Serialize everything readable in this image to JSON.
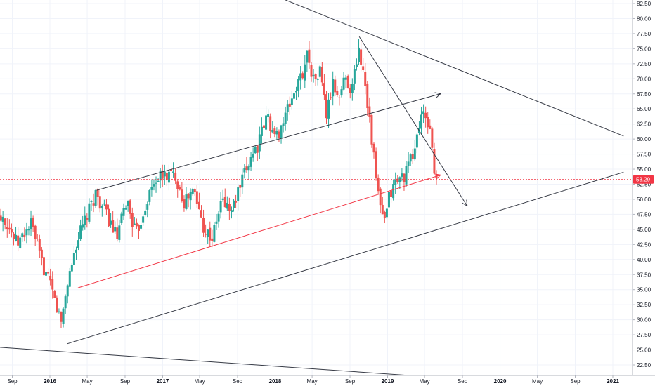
{
  "chart_data": {
    "type": "candlestick",
    "title": "",
    "xlabel": "",
    "ylabel": "",
    "ylim": [
      20.8,
      83.6
    ],
    "grid": true,
    "colors": {
      "up": "#26a69a",
      "down": "#ef5350",
      "trendline": "#363a45",
      "support": "#f23645",
      "price_line": "#f23645",
      "grid": "#f0f3fa",
      "axis_text": "#131722"
    },
    "x_tick_labels": [
      {
        "label": "Sep",
        "date": "2015-09-01"
      },
      {
        "label": "2016",
        "date": "2016-01-01"
      },
      {
        "label": "May",
        "date": "2016-05-01"
      },
      {
        "label": "Sep",
        "date": "2016-09-01"
      },
      {
        "label": "2017",
        "date": "2017-01-01"
      },
      {
        "label": "May",
        "date": "2017-05-01"
      },
      {
        "label": "Sep",
        "date": "2017-09-01"
      },
      {
        "label": "2018",
        "date": "2018-01-01"
      },
      {
        "label": "May",
        "date": "2018-05-01"
      },
      {
        "label": "Sep",
        "date": "2018-09-01"
      },
      {
        "label": "2019",
        "date": "2019-01-01"
      },
      {
        "label": "May",
        "date": "2019-05-01"
      },
      {
        "label": "Sep",
        "date": "2019-09-01"
      },
      {
        "label": "2020",
        "date": "2020-01-01"
      },
      {
        "label": "May",
        "date": "2020-05-01"
      },
      {
        "label": "Sep",
        "date": "2020-09-01"
      },
      {
        "label": "2021",
        "date": "2021-01-01"
      }
    ],
    "y_tick_labels": [
      "82.50",
      "80.00",
      "77.50",
      "75.00",
      "72.50",
      "70.00",
      "67.50",
      "65.00",
      "62.50",
      "60.00",
      "57.50",
      "55.00",
      "52.50",
      "50.00",
      "47.50",
      "45.00",
      "42.50",
      "40.00",
      "37.50",
      "35.00",
      "32.50",
      "30.00",
      "27.50",
      "25.00",
      "22.50"
    ],
    "last_price": {
      "value": 53.29,
      "label": "53.29"
    },
    "path_points": [
      [
        "2015-07-01",
        47
      ],
      [
        "2015-08-05",
        47.5
      ],
      [
        "2015-09-20",
        42.5
      ],
      [
        "2015-11-05",
        46
      ],
      [
        "2015-12-05",
        40
      ],
      [
        "2016-01-10",
        35
      ],
      [
        "2016-02-10",
        29.5
      ],
      [
        "2016-03-01",
        36
      ],
      [
        "2016-04-01",
        43
      ],
      [
        "2016-05-10",
        48
      ],
      [
        "2016-06-01",
        51
      ],
      [
        "2016-07-10",
        47
      ],
      [
        "2016-08-10",
        43.5
      ],
      [
        "2016-09-10",
        50
      ],
      [
        "2016-10-10",
        44
      ],
      [
        "2016-11-15",
        50
      ],
      [
        "2016-12-15",
        53.5
      ],
      [
        "2017-01-15",
        54
      ],
      [
        "2017-02-15",
        54
      ],
      [
        "2017-03-15",
        49.5
      ],
      [
        "2017-04-15",
        51.5
      ],
      [
        "2017-05-20",
        45
      ],
      [
        "2017-06-15",
        43.5
      ],
      [
        "2017-07-15",
        50
      ],
      [
        "2017-08-15",
        48
      ],
      [
        "2017-09-20",
        53
      ],
      [
        "2017-10-20",
        57.5
      ],
      [
        "2017-11-10",
        59
      ],
      [
        "2017-12-10",
        64
      ],
      [
        "2018-01-05",
        60
      ],
      [
        "2018-02-05",
        63.5
      ],
      [
        "2018-03-01",
        67
      ],
      [
        "2018-04-01",
        70.5
      ],
      [
        "2018-04-20",
        74.5
      ],
      [
        "2018-05-10",
        69.5
      ],
      [
        "2018-06-01",
        71.5
      ],
      [
        "2018-06-20",
        64
      ],
      [
        "2018-07-10",
        69
      ],
      [
        "2018-08-01",
        67
      ],
      [
        "2018-08-20",
        70.5
      ],
      [
        "2018-09-10",
        68
      ],
      [
        "2018-10-01",
        75
      ],
      [
        "2018-10-20",
        71
      ],
      [
        "2018-11-10",
        62
      ],
      [
        "2018-12-01",
        52
      ],
      [
        "2018-12-24",
        45.5
      ],
      [
        "2019-01-10",
        50.5
      ],
      [
        "2019-02-01",
        53
      ],
      [
        "2019-03-01",
        54
      ],
      [
        "2019-04-01",
        58
      ],
      [
        "2019-04-25",
        64.5
      ],
      [
        "2019-05-10",
        62.5
      ],
      [
        "2019-05-25",
        62
      ],
      [
        "2019-06-05",
        53.3
      ]
    ],
    "candle_interval_days": 7,
    "trendlines": [
      {
        "kind": "upper-channel",
        "from": [
          "2016-06-01",
          51.5
        ],
        "to": [
          "2019-06-20",
          67.5
        ],
        "arrow": true,
        "color": "trendline"
      },
      {
        "kind": "lower-channel",
        "from": [
          "2016-02-25",
          26
        ],
        "to": [
          "2021-02-05",
          54.5
        ],
        "arrow": false,
        "color": "trendline"
      },
      {
        "kind": "descending-resistance",
        "from": [
          "2016-02-10",
          98
        ],
        "to": [
          "2021-02-05",
          60.5
        ],
        "arrow": false,
        "color": "trendline"
      },
      {
        "kind": "peak-descent",
        "from": [
          "2018-10-01",
          77
        ],
        "to": [
          "2019-09-15",
          49
        ],
        "arrow": true,
        "color": "trendline"
      },
      {
        "kind": "bottom-line",
        "from": [
          "2015-07-01",
          25.5
        ],
        "to": [
          "2019-03-01",
          20.8
        ],
        "arrow": false,
        "color": "trendline"
      },
      {
        "kind": "support",
        "from": [
          "2016-04-01",
          35.3
        ],
        "to": [
          "2019-06-20",
          54
        ],
        "arrow": true,
        "color": "support"
      }
    ]
  }
}
